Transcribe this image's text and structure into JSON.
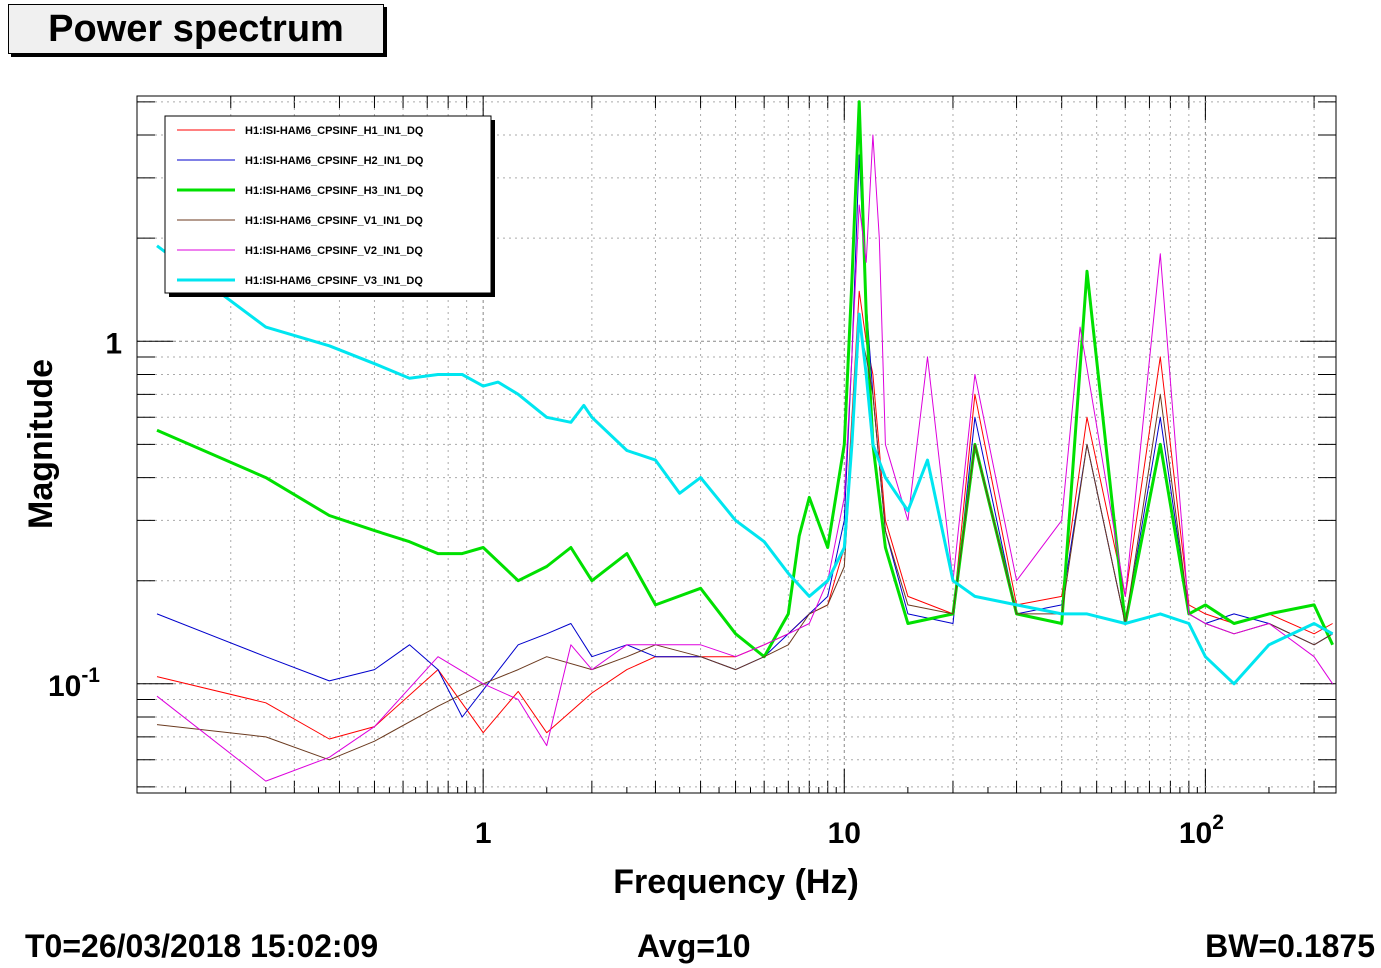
{
  "title": "Power spectrum",
  "footer": {
    "t0": "T0=26/03/2018 15:02:09",
    "avg": "Avg=10",
    "bw": "BW=0.1875"
  },
  "chart_data": {
    "type": "line",
    "title": "Power spectrum",
    "xlabel": "Frequency (Hz)",
    "ylabel": "Magnitude",
    "x_scale": "log",
    "y_scale": "log",
    "xlim": [
      0.11,
      230
    ],
    "ylim": [
      0.048,
      5.2
    ],
    "x_tick_labels": [
      "1",
      "10",
      "10^2"
    ],
    "y_tick_labels": [
      "10^-1",
      "1"
    ],
    "grid": true,
    "legend_position": "top-left",
    "series": [
      {
        "name": "H1:ISI-HAM6_CPSINF_H1_IN1_DQ",
        "color": "#ff0000",
        "width": 1,
        "x": [
          0.125,
          0.25,
          0.375,
          0.5,
          0.75,
          1,
          1.25,
          1.5,
          2,
          2.5,
          3,
          4,
          5,
          6,
          7,
          8,
          9,
          10,
          10.5,
          11,
          11.5,
          12,
          13,
          15,
          20,
          23,
          30,
          40,
          47,
          60,
          75,
          90,
          100,
          120,
          150,
          200,
          225
        ],
        "y": [
          0.105,
          0.088,
          0.069,
          0.075,
          0.11,
          0.072,
          0.095,
          0.072,
          0.094,
          0.11,
          0.12,
          0.12,
          0.12,
          0.13,
          0.14,
          0.16,
          0.17,
          0.25,
          0.6,
          1.4,
          1.0,
          0.8,
          0.3,
          0.18,
          0.16,
          0.7,
          0.17,
          0.18,
          0.6,
          0.18,
          0.9,
          0.17,
          0.16,
          0.15,
          0.16,
          0.14,
          0.15
        ]
      },
      {
        "name": "H1:ISI-HAM6_CPSINF_H2_IN1_DQ",
        "color": "#0000cc",
        "width": 1,
        "x": [
          0.125,
          0.25,
          0.375,
          0.5,
          0.625,
          0.75,
          0.875,
          1,
          1.25,
          1.5,
          1.75,
          2,
          2.5,
          3,
          4,
          5,
          6,
          7,
          8,
          9,
          10,
          10.5,
          11,
          11.5,
          12,
          13,
          15,
          20,
          23,
          30,
          40,
          47,
          60,
          75,
          90,
          100,
          120,
          150,
          200,
          225
        ],
        "y": [
          0.16,
          0.12,
          0.102,
          0.11,
          0.13,
          0.11,
          0.08,
          0.096,
          0.13,
          0.14,
          0.15,
          0.12,
          0.13,
          0.12,
          0.12,
          0.11,
          0.12,
          0.14,
          0.16,
          0.18,
          0.3,
          0.9,
          3.5,
          1.3,
          0.7,
          0.28,
          0.16,
          0.15,
          0.6,
          0.16,
          0.17,
          0.5,
          0.15,
          0.6,
          0.16,
          0.15,
          0.16,
          0.15,
          0.13,
          0.14
        ]
      },
      {
        "name": "H1:ISI-HAM6_CPSINF_H3_IN1_DQ",
        "color": "#00e000",
        "width": 3,
        "x": [
          0.125,
          0.25,
          0.375,
          0.5,
          0.625,
          0.75,
          0.875,
          1,
          1.25,
          1.5,
          1.75,
          2,
          2.5,
          3,
          4,
          5,
          6,
          7,
          7.5,
          8,
          9,
          10,
          10.5,
          11,
          11.5,
          12,
          13,
          15,
          20,
          23,
          30,
          40,
          47,
          60,
          75,
          90,
          100,
          120,
          150,
          200,
          225
        ],
        "y": [
          0.55,
          0.4,
          0.31,
          0.28,
          0.26,
          0.24,
          0.24,
          0.25,
          0.2,
          0.22,
          0.25,
          0.2,
          0.24,
          0.17,
          0.19,
          0.14,
          0.12,
          0.16,
          0.27,
          0.35,
          0.25,
          0.5,
          1.5,
          5.0,
          1.2,
          0.5,
          0.25,
          0.15,
          0.16,
          0.5,
          0.16,
          0.15,
          1.6,
          0.15,
          0.5,
          0.16,
          0.17,
          0.15,
          0.16,
          0.17,
          0.13
        ]
      },
      {
        "name": "H1:ISI-HAM6_CPSINF_V1_IN1_DQ",
        "color": "#6b3a1f",
        "width": 1,
        "x": [
          0.125,
          0.25,
          0.375,
          0.5,
          0.75,
          1,
          1.25,
          1.5,
          2,
          2.5,
          3,
          4,
          5,
          6,
          7,
          8,
          9,
          10,
          10.5,
          11,
          11.5,
          12,
          13,
          15,
          20,
          23,
          30,
          40,
          47,
          60,
          75,
          90,
          100,
          120,
          150,
          200,
          225
        ],
        "y": [
          0.076,
          0.07,
          0.06,
          0.068,
          0.086,
          0.1,
          0.11,
          0.12,
          0.11,
          0.12,
          0.13,
          0.12,
          0.11,
          0.12,
          0.13,
          0.16,
          0.17,
          0.22,
          0.5,
          1.1,
          0.9,
          0.7,
          0.28,
          0.17,
          0.16,
          0.5,
          0.16,
          0.16,
          0.5,
          0.15,
          0.7,
          0.16,
          0.15,
          0.14,
          0.15,
          0.13,
          0.14
        ]
      },
      {
        "name": "H1:ISI-HAM6_CPSINF_V2_IN1_DQ",
        "color": "#dd00dd",
        "width": 1,
        "x": [
          0.125,
          0.25,
          0.375,
          0.5,
          0.75,
          1,
          1.25,
          1.5,
          1.75,
          2,
          2.5,
          3,
          4,
          5,
          6,
          7,
          8,
          9,
          10,
          10.5,
          11,
          11.5,
          12,
          12.5,
          13,
          15,
          17,
          20,
          23,
          30,
          40,
          45,
          60,
          75,
          90,
          100,
          120,
          150,
          200,
          225
        ],
        "y": [
          0.092,
          0.052,
          0.061,
          0.075,
          0.12,
          0.1,
          0.09,
          0.066,
          0.13,
          0.11,
          0.13,
          0.13,
          0.13,
          0.12,
          0.13,
          0.14,
          0.15,
          0.2,
          0.35,
          0.9,
          2.5,
          1.7,
          4.0,
          2.0,
          0.5,
          0.3,
          0.9,
          0.2,
          0.8,
          0.2,
          0.3,
          1.1,
          0.18,
          1.8,
          0.16,
          0.15,
          0.14,
          0.15,
          0.12,
          0.1
        ]
      },
      {
        "name": "H1:ISI-HAM6_CPSINF_V3_IN1_DQ",
        "color": "#00e6f0",
        "width": 3,
        "x": [
          0.125,
          0.25,
          0.375,
          0.5,
          0.625,
          0.75,
          0.875,
          1,
          1.1,
          1.25,
          1.5,
          1.75,
          1.9,
          2,
          2.5,
          3,
          3.5,
          4,
          5,
          6,
          7,
          8,
          9,
          10,
          10.5,
          11,
          11.5,
          12,
          13,
          15,
          17,
          20,
          23,
          30,
          40,
          47,
          60,
          75,
          90,
          100,
          120,
          150,
          200,
          225
        ],
        "y": [
          1.9,
          1.1,
          0.97,
          0.86,
          0.78,
          0.8,
          0.8,
          0.74,
          0.76,
          0.7,
          0.6,
          0.58,
          0.65,
          0.6,
          0.48,
          0.45,
          0.36,
          0.4,
          0.3,
          0.26,
          0.21,
          0.18,
          0.2,
          0.25,
          0.5,
          1.2,
          0.8,
          0.5,
          0.4,
          0.32,
          0.45,
          0.2,
          0.18,
          0.17,
          0.16,
          0.16,
          0.15,
          0.16,
          0.15,
          0.12,
          0.1,
          0.13,
          0.15,
          0.14
        ]
      }
    ]
  }
}
